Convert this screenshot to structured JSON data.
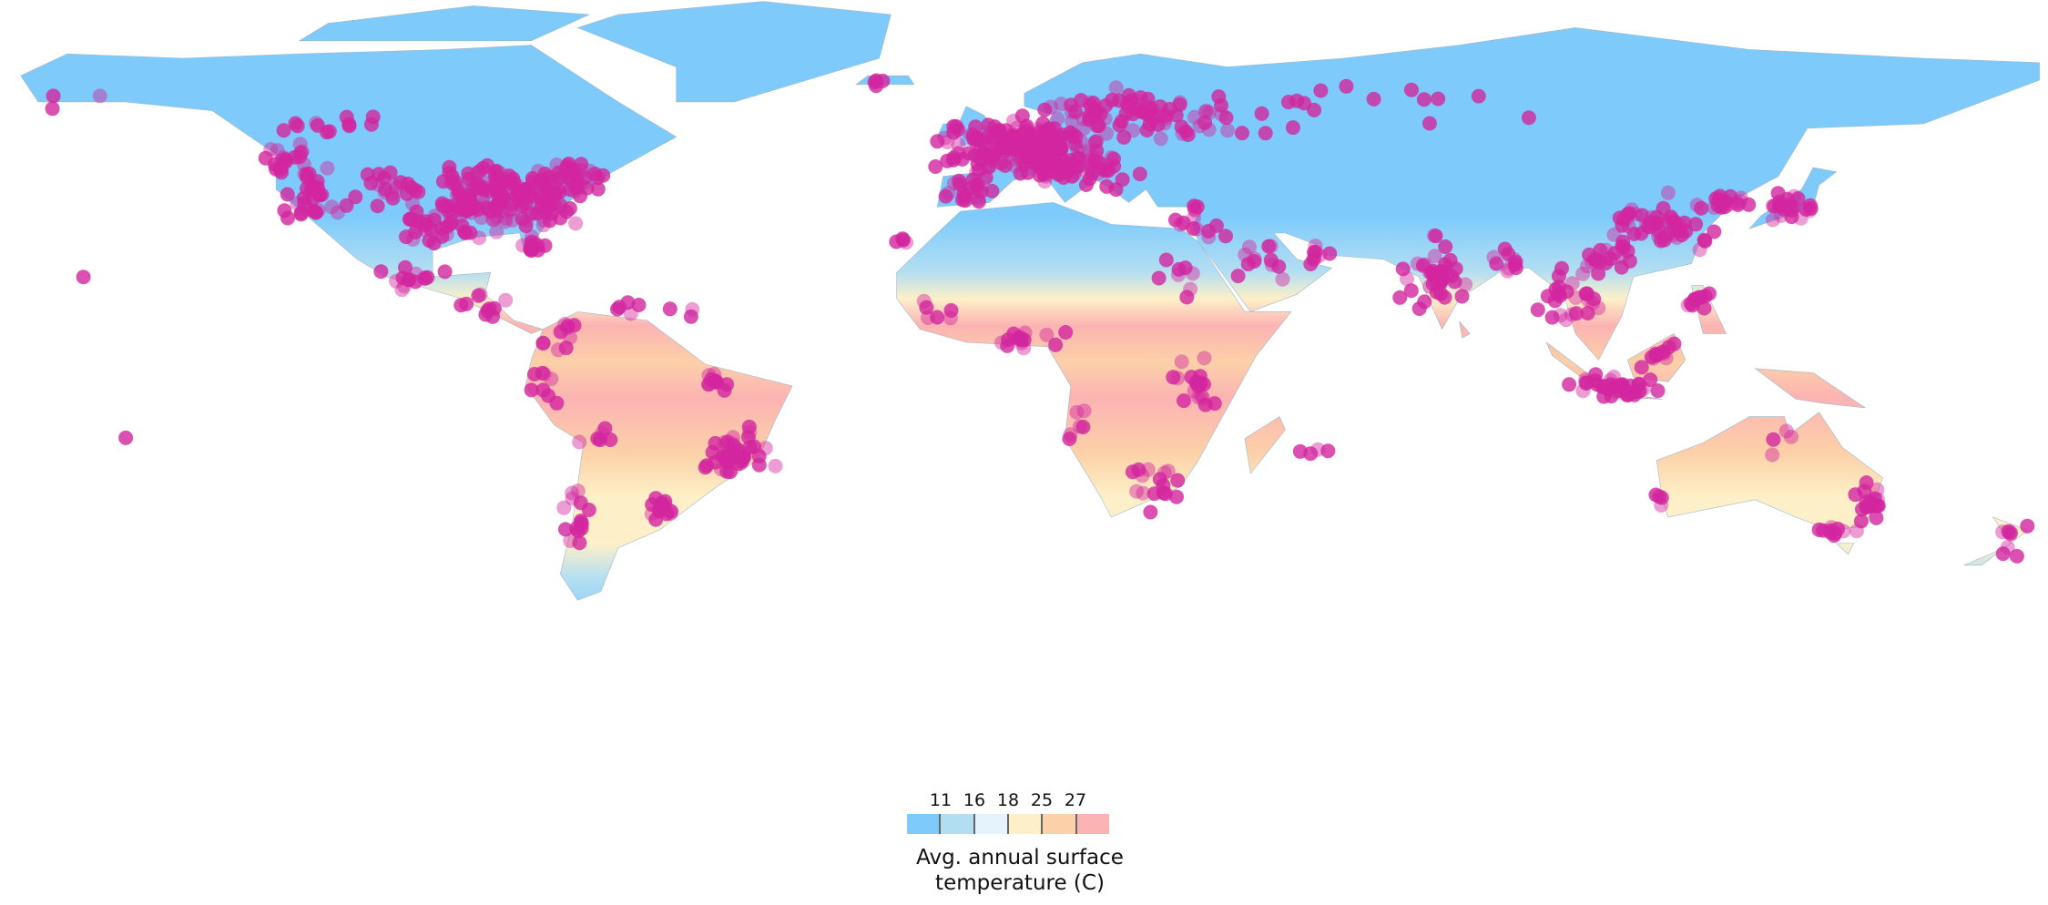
{
  "map": {
    "land_fill_default": "#7ecbfb",
    "marker_color": "#d2259f",
    "marker_meaning": "points"
  },
  "legend": {
    "ticks": [
      "11",
      "16",
      "18",
      "25",
      "27"
    ],
    "colors": [
      "#7ecbfb",
      "#b3def2",
      "#e5f4fc",
      "#fdf0c8",
      "#fcd0a8",
      "#fcb3b3"
    ],
    "title_line1": "Avg. annual surface",
    "title_line2": "temperature (C)"
  }
}
